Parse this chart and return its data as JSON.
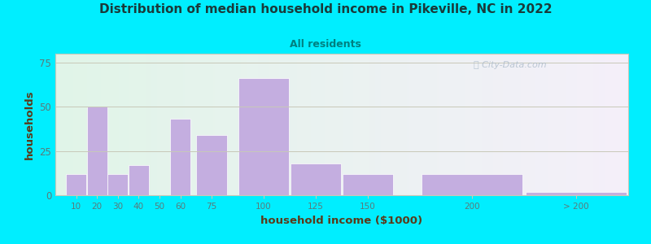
{
  "title": "Distribution of median household income in Pikeville, NC in 2022",
  "subtitle": "All residents",
  "xlabel": "household income ($1000)",
  "ylabel": "households",
  "background_outer": "#00eeff",
  "bar_color": "#c4aee0",
  "bar_edge_color": "#ffffff",
  "title_color": "#1a3a3a",
  "subtitle_color": "#008080",
  "axis_label_color": "#5a3a1a",
  "tick_label_color": "#5a7a7a",
  "watermark": " City-Data.com",
  "values": [
    12,
    50,
    12,
    17,
    0,
    43,
    34,
    66,
    18,
    12,
    12,
    2
  ],
  "bar_lefts": [
    5,
    15,
    25,
    35,
    45,
    55,
    67.5,
    87.5,
    112.5,
    137.5,
    175,
    225
  ],
  "bar_widths": [
    10,
    10,
    10,
    10,
    10,
    10,
    15,
    25,
    25,
    25,
    50,
    50
  ],
  "xtick_positions": [
    10,
    20,
    30,
    40,
    50,
    60,
    75,
    100,
    125,
    150,
    200,
    250
  ],
  "xtick_labels": [
    "10",
    "20",
    "30",
    "40",
    "50",
    "60",
    "75",
    "100",
    "125",
    "150",
    "200",
    "> 200"
  ],
  "xlim": [
    0,
    275
  ],
  "ylim": [
    0,
    80
  ],
  "yticks": [
    0,
    25,
    50,
    75
  ],
  "plot_bg_color_left": "#dff2e8",
  "plot_bg_color_right": "#f0eef8",
  "grid_color": "#c8c8b8",
  "figsize": [
    8.0,
    3.0
  ],
  "dpi": 100
}
